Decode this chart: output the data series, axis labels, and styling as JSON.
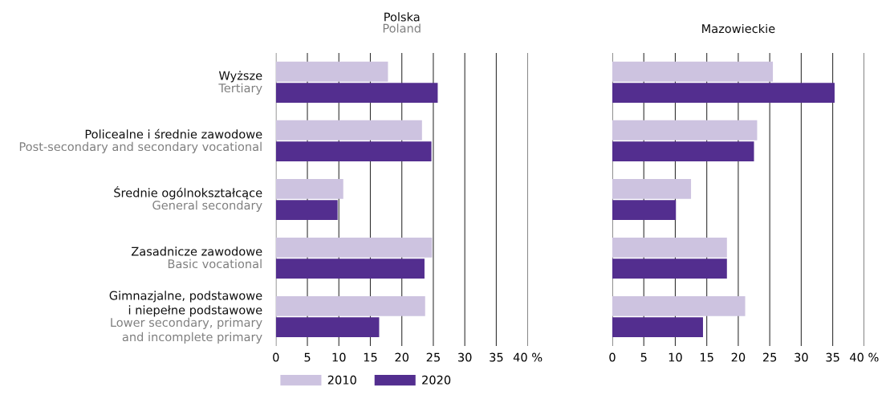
{
  "chart_data": [
    {
      "type": "bar",
      "orientation": "horizontal",
      "title": "Polska\nPoland",
      "categories": [
        "Wyższe\nTertiary",
        "Policealne i średnie zawodowe\nPost-secondary and secondary vocational",
        "Średnie ogólnokształcące\nGeneral secondary",
        "Zasadnicze zawodowe\nBasic vocational",
        "Gimnazjalne, podstawowe\ni niepełne podstawowe\nLower secondary, primary\nand incomplete primary"
      ],
      "series": [
        {
          "name": "2010",
          "color": "#cdc3e0",
          "values": [
            17.8,
            23.2,
            10.7,
            24.8,
            23.7
          ]
        },
        {
          "name": "2020",
          "color": "#532e8f",
          "values": [
            25.7,
            24.7,
            9.8,
            23.6,
            16.4
          ]
        }
      ],
      "xlim": [
        0,
        40
      ],
      "xticks": [
        0,
        5,
        10,
        15,
        20,
        25,
        30,
        35,
        {
          "value": 40,
          "label": "40 %"
        }
      ],
      "grid": "x",
      "legend": "bottom"
    },
    {
      "type": "bar",
      "orientation": "horizontal",
      "title": "Mazowieckie",
      "categories": [
        null,
        null,
        null,
        null,
        null
      ],
      "series": [
        {
          "color": "#cdc3e0",
          "values": [
            25.5,
            23.0,
            12.5,
            18.2,
            21.1
          ]
        },
        {
          "color": "#532e8f",
          "values": [
            35.3,
            22.5,
            10.1,
            18.2,
            14.4
          ]
        }
      ],
      "xlim": [
        0,
        40
      ],
      "xticks": [
        0,
        5,
        10,
        15,
        20,
        25,
        30,
        35,
        {
          "value": 40,
          "label": "40 %"
        }
      ],
      "grid": "x",
      "tick_labels": "x"
    }
  ]
}
